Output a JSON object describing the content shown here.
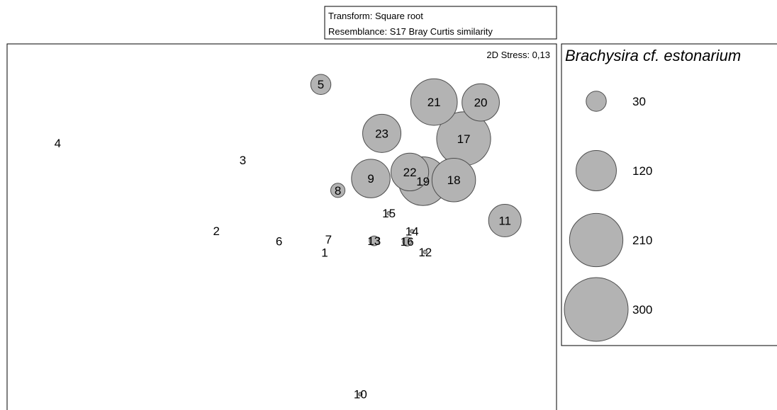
{
  "header": {
    "transform": "Transform: Square root",
    "resemblance": "Resemblance: S17 Bray Curtis similarity"
  },
  "chart_data": {
    "type": "scatter",
    "subtype": "MDS bubble plot",
    "stress_label": "2D Stress: 0,13",
    "axes_shown": false,
    "grid": false,
    "bubble_variable": "Brachysira cf. estonarium",
    "points": [
      {
        "label": "1",
        "x": 0.578,
        "y": 0.455,
        "size": 0
      },
      {
        "label": "2",
        "x": 0.381,
        "y": 0.511,
        "size": 0
      },
      {
        "label": "3",
        "x": 0.429,
        "y": 0.696,
        "size": 0
      },
      {
        "label": "4",
        "x": 0.092,
        "y": 0.741,
        "size": 0
      },
      {
        "label": "5",
        "x": 0.571,
        "y": 0.894,
        "size": 30
      },
      {
        "label": "6",
        "x": 0.495,
        "y": 0.484,
        "size": 0
      },
      {
        "label": "7",
        "x": 0.585,
        "y": 0.489,
        "size": 0
      },
      {
        "label": "8",
        "x": 0.602,
        "y": 0.617,
        "size": 15
      },
      {
        "label": "9",
        "x": 0.662,
        "y": 0.648,
        "size": 110
      },
      {
        "label": "10",
        "x": 0.643,
        "y": 0.084,
        "size": 1
      },
      {
        "label": "11",
        "x": 0.906,
        "y": 0.538,
        "size": 78
      },
      {
        "label": "12",
        "x": 0.761,
        "y": 0.456,
        "size": 1
      },
      {
        "label": "13",
        "x": 0.668,
        "y": 0.485,
        "size": 7
      },
      {
        "label": "14",
        "x": 0.737,
        "y": 0.51,
        "size": 1
      },
      {
        "label": "15",
        "x": 0.695,
        "y": 0.557,
        "size": 1
      },
      {
        "label": "16",
        "x": 0.728,
        "y": 0.483,
        "size": 6
      },
      {
        "label": "17",
        "x": 0.831,
        "y": 0.752,
        "size": 215
      },
      {
        "label": "18",
        "x": 0.813,
        "y": 0.644,
        "size": 140
      },
      {
        "label": "19",
        "x": 0.757,
        "y": 0.641,
        "size": 175
      },
      {
        "label": "20",
        "x": 0.862,
        "y": 0.847,
        "size": 103
      },
      {
        "label": "21",
        "x": 0.777,
        "y": 0.848,
        "size": 160
      },
      {
        "label": "22",
        "x": 0.733,
        "y": 0.665,
        "size": 105
      },
      {
        "label": "23",
        "x": 0.682,
        "y": 0.766,
        "size": 108
      }
    ],
    "legend": {
      "title": "Brachysira cf. estonarium",
      "placement": "right",
      "sizes": [
        30,
        120,
        210,
        300
      ],
      "labels": [
        "30",
        "120",
        "210",
        "300"
      ]
    },
    "colors": {
      "bubble_fill": "#b3b3b3",
      "bubble_stroke": "#4d4d4d"
    }
  }
}
